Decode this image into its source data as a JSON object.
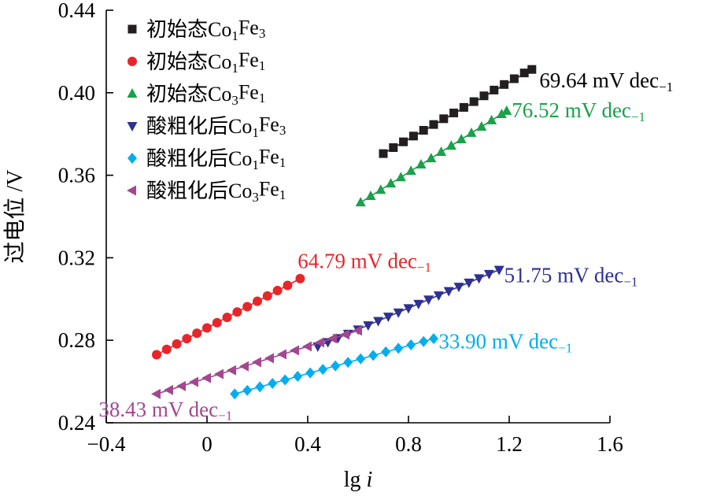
{
  "chart_data": {
    "type": "scatter",
    "title": "",
    "xlabel": "lg i",
    "ylabel": "过电位 /V",
    "xlim": [
      -0.4,
      1.6
    ],
    "ylim": [
      0.24,
      0.44
    ],
    "x_ticks": [
      {
        "value": -0.4,
        "label": "−0.4"
      },
      {
        "value": 0,
        "label": "0"
      },
      {
        "value": 0.4,
        "label": "0.4"
      },
      {
        "value": 0.8,
        "label": "0.8"
      },
      {
        "value": 1.2,
        "label": "1.2"
      },
      {
        "value": 1.6,
        "label": "1.6"
      }
    ],
    "y_ticks": [
      {
        "value": 0.24,
        "label": "0.24"
      },
      {
        "value": 0.28,
        "label": "0.28"
      },
      {
        "value": 0.32,
        "label": "0.32"
      },
      {
        "value": 0.36,
        "label": "0.36"
      },
      {
        "value": 0.4,
        "label": "0.40"
      },
      {
        "value": 0.44,
        "label": "0.44"
      }
    ],
    "grid": false,
    "legend_position": "top-left",
    "series": [
      {
        "name_parts": [
          [
            "初始态Co",
            false
          ],
          [
            "1",
            true
          ],
          [
            "Fe",
            false
          ],
          [
            "3",
            true
          ]
        ],
        "marker": "square",
        "color": "#231f20",
        "x": [
          0.7,
          0.74,
          0.78,
          0.82,
          0.86,
          0.9,
          0.94,
          0.98,
          1.02,
          1.06,
          1.1,
          1.14,
          1.18,
          1.22,
          1.26,
          1.29
        ],
        "y": [
          0.3705,
          0.3734,
          0.3762,
          0.379,
          0.3818,
          0.3846,
          0.3874,
          0.3902,
          0.3929,
          0.3957,
          0.3985,
          0.4013,
          0.404,
          0.4068,
          0.4096,
          0.4113
        ],
        "fit_line": [
          [
            0.7,
            0.3705
          ],
          [
            1.29,
            0.4113
          ]
        ],
        "annotation": {
          "parts": [
            [
              "69.64 mV dec",
              false
            ],
            [
              "−1",
              true
            ]
          ],
          "x": 1.32,
          "y": 0.406,
          "color": "#000000"
        }
      },
      {
        "name_parts": [
          [
            "初始态Co",
            false
          ],
          [
            "1",
            true
          ],
          [
            "Fe",
            false
          ],
          [
            "1",
            true
          ]
        ],
        "marker": "circle",
        "color": "#e8262a",
        "x": [
          -0.2,
          -0.16,
          -0.12,
          -0.08,
          -0.04,
          0.0,
          0.04,
          0.08,
          0.12,
          0.16,
          0.2,
          0.24,
          0.28,
          0.32,
          0.37
        ],
        "y": [
          0.273,
          0.2756,
          0.2782,
          0.2808,
          0.2834,
          0.286,
          0.2885,
          0.2911,
          0.2937,
          0.2963,
          0.2989,
          0.3015,
          0.3041,
          0.3066,
          0.3099
        ],
        "fit_line": [
          [
            -0.2,
            0.273
          ],
          [
            0.37,
            0.3099
          ]
        ],
        "annotation": {
          "parts": [
            [
              "64.79 mV dec",
              false
            ],
            [
              "−1",
              true
            ]
          ],
          "x": 0.36,
          "y": 0.3185,
          "color": "#e8262a"
        }
      },
      {
        "name_parts": [
          [
            "初始态Co",
            false
          ],
          [
            "3",
            true
          ],
          [
            "Fe",
            false
          ],
          [
            "1",
            true
          ]
        ],
        "marker": "triangle-up",
        "color": "#1aa14b",
        "x": [
          0.61,
          0.65,
          0.69,
          0.73,
          0.77,
          0.81,
          0.85,
          0.89,
          0.93,
          0.97,
          1.01,
          1.05,
          1.09,
          1.13,
          1.17,
          1.19
        ],
        "y": [
          0.3468,
          0.3499,
          0.3529,
          0.356,
          0.359,
          0.3621,
          0.3652,
          0.3682,
          0.3713,
          0.3743,
          0.3774,
          0.3805,
          0.3835,
          0.3866,
          0.3896,
          0.3912
        ],
        "fit_line": [
          [
            0.61,
            0.3468
          ],
          [
            1.19,
            0.3912
          ]
        ],
        "annotation": {
          "parts": [
            [
              "76.52 mV dec",
              false
            ],
            [
              "−1",
              true
            ]
          ],
          "x": 1.21,
          "y": 0.3915,
          "color": "#1aa14b"
        }
      },
      {
        "name_parts": [
          [
            "酸粗化后Co",
            false
          ],
          [
            "1",
            true
          ],
          [
            "Fe",
            false
          ],
          [
            "3",
            true
          ]
        ],
        "marker": "triangle-down",
        "color": "#2e3192",
        "x": [
          0.44,
          0.48,
          0.52,
          0.56,
          0.6,
          0.64,
          0.68,
          0.72,
          0.76,
          0.8,
          0.84,
          0.88,
          0.92,
          0.96,
          1.0,
          1.04,
          1.08,
          1.12,
          1.16
        ],
        "y": [
          0.277,
          0.2791,
          0.2811,
          0.2832,
          0.2853,
          0.2873,
          0.2894,
          0.2915,
          0.2935,
          0.2956,
          0.2977,
          0.2998,
          0.3018,
          0.3039,
          0.306,
          0.308,
          0.3101,
          0.3122,
          0.3142
        ],
        "fit_line": [
          [
            0.44,
            0.277
          ],
          [
            1.16,
            0.3142
          ]
        ],
        "annotation": {
          "parts": [
            [
              "51.75 mV dec",
              false
            ],
            [
              "−1",
              true
            ]
          ],
          "x": 1.18,
          "y": 0.3115,
          "color": "#2e3192"
        }
      },
      {
        "name_parts": [
          [
            "酸粗化后Co",
            false
          ],
          [
            "1",
            true
          ],
          [
            "Fe",
            false
          ],
          [
            "1",
            true
          ]
        ],
        "marker": "diamond",
        "color": "#00aeef",
        "x": [
          0.11,
          0.16,
          0.21,
          0.26,
          0.31,
          0.36,
          0.41,
          0.46,
          0.51,
          0.56,
          0.61,
          0.66,
          0.71,
          0.76,
          0.81,
          0.86,
          0.9
        ],
        "y": [
          0.254,
          0.2557,
          0.2574,
          0.2591,
          0.2608,
          0.2625,
          0.2642,
          0.2659,
          0.2676,
          0.2693,
          0.271,
          0.2727,
          0.2744,
          0.2761,
          0.2778,
          0.2794,
          0.2808
        ],
        "fit_line": [
          [
            0.11,
            0.254
          ],
          [
            0.9,
            0.2808
          ]
        ],
        "annotation": {
          "parts": [
            [
              "33.90 mV dec",
              false
            ],
            [
              "−1",
              true
            ]
          ],
          "x": 0.92,
          "y": 0.2795,
          "color": "#00aeef"
        }
      },
      {
        "name_parts": [
          [
            "酸粗化后Co",
            false
          ],
          [
            "3",
            true
          ],
          [
            "Fe",
            false
          ],
          [
            "1",
            true
          ]
        ],
        "marker": "triangle-left",
        "color": "#a3478f",
        "x": [
          -0.2,
          -0.15,
          -0.1,
          -0.05,
          0.0,
          0.05,
          0.1,
          0.15,
          0.2,
          0.25,
          0.3,
          0.35,
          0.4,
          0.45,
          0.5,
          0.55,
          0.6
        ],
        "y": [
          0.254,
          0.2559,
          0.2578,
          0.2598,
          0.2617,
          0.2636,
          0.2655,
          0.2674,
          0.2694,
          0.2713,
          0.2732,
          0.2751,
          0.277,
          0.279,
          0.2809,
          0.2828,
          0.2847
        ],
        "fit_line": [
          [
            -0.2,
            0.254
          ],
          [
            0.6,
            0.2847
          ]
        ],
        "annotation": {
          "parts": [
            [
              "38.43 mV dec",
              false
            ],
            [
              "−1",
              true
            ]
          ],
          "x": -0.43,
          "y": 0.2465,
          "color": "#a3478f"
        }
      }
    ]
  }
}
